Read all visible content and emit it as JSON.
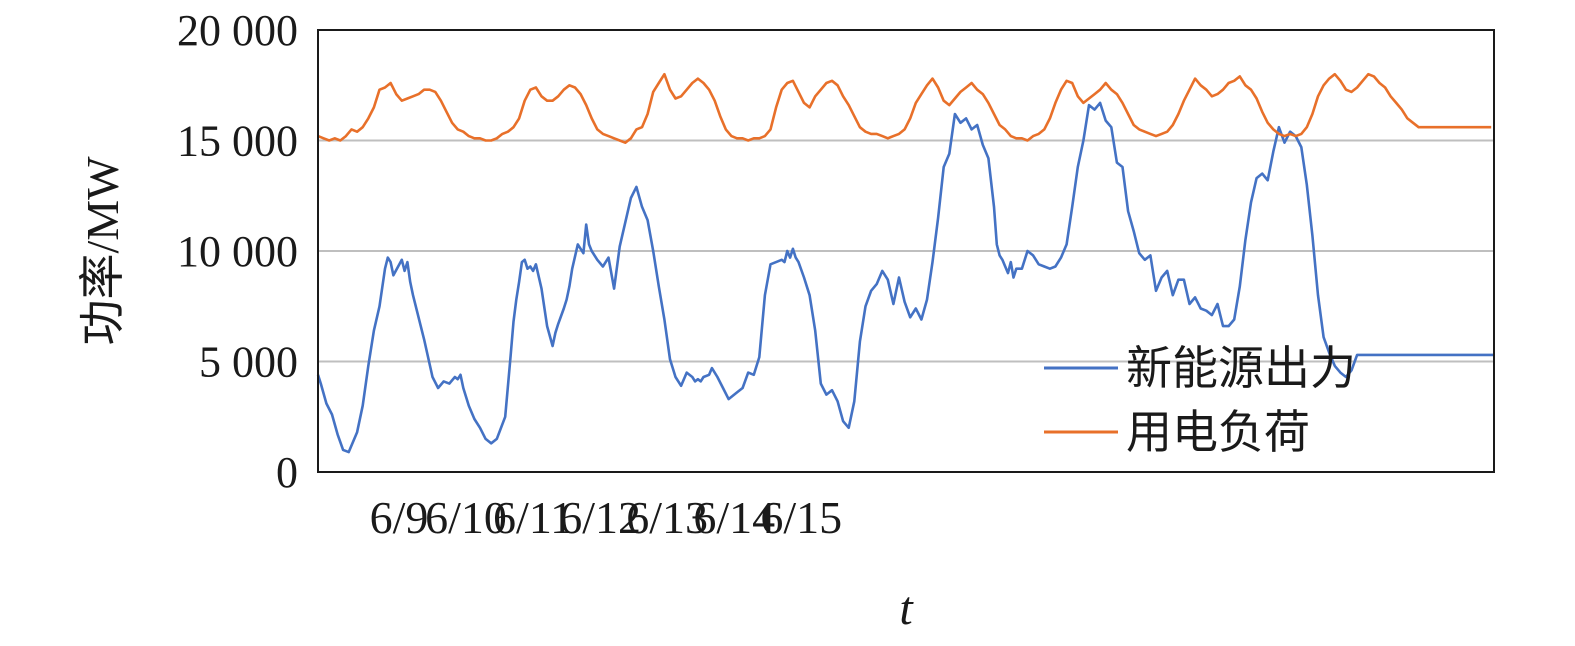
{
  "chart_data": {
    "type": "line",
    "title": "",
    "xlabel": "t",
    "ylabel": "功率/MW",
    "x_start": "6/8 07:00",
    "x_tick_labels": [
      "6/9",
      "6/10",
      "6/11",
      "6/12",
      "6/13",
      "6/14",
      "6/15"
    ],
    "y_tick_labels": [
      "0",
      "5 000",
      "10 000",
      "15 000",
      "20 000"
    ],
    "ylim": [
      0,
      20000
    ],
    "y_ticks": [
      0,
      5000,
      10000,
      15000,
      20000
    ],
    "grid": "horizontal",
    "legend_position": "bottom-right",
    "series": [
      {
        "name": "新能源出力",
        "color": "#4472C4",
        "time_hours": [
          0,
          1,
          3,
          5,
          7,
          9,
          11,
          14,
          16,
          18,
          20,
          22,
          24,
          25,
          26,
          27,
          30,
          31,
          32,
          33,
          34,
          38,
          41,
          43,
          45,
          47,
          49,
          50,
          51,
          52,
          54,
          56,
          58,
          60,
          62,
          64,
          67,
          69,
          70,
          71,
          72,
          73,
          74,
          75,
          76,
          77,
          78,
          80,
          82,
          84,
          85,
          86,
          88,
          89,
          90,
          91,
          93,
          95,
          96,
          97,
          98,
          100,
          102,
          104,
          106,
          108,
          110,
          112,
          114,
          116,
          118,
          120,
          122,
          124,
          126,
          128,
          130,
          132,
          134,
          135,
          136,
          137,
          138,
          140,
          141,
          143,
          145,
          147,
          150,
          152,
          154,
          156,
          158,
          160,
          162,
          164,
          166,
          167,
          168,
          169,
          170,
          171,
          172,
          174,
          176,
          178,
          180,
          182,
          184,
          186,
          188,
          190,
          192,
          194,
          196,
          198,
          200,
          202,
          204,
          206,
          208,
          210,
          212,
          214,
          216,
          218,
          220,
          222,
          224,
          226,
          228,
          230,
          232,
          234,
          236,
          238,
          240,
          242,
          243,
          244,
          245,
          246,
          247,
          248,
          249,
          250,
          252,
          254,
          256,
          258,
          260,
          262,
          264,
          266,
          268,
          270,
          272,
          274,
          276,
          278,
          280,
          282,
          284,
          286,
          288,
          290,
          292,
          294,
          296,
          298,
          300,
          302,
          304,
          306,
          308,
          310,
          312,
          314,
          316,
          318,
          320,
          322,
          324,
          326,
          328,
          330,
          332,
          334,
          336,
          338,
          340,
          342,
          344,
          346,
          348,
          350,
          352,
          354,
          356,
          358,
          360,
          362,
          364,
          366,
          368,
          370,
          372,
          374,
          376,
          378,
          380,
          382,
          384,
          386,
          388,
          390,
          392,
          394,
          396,
          398,
          400,
          402,
          404,
          406,
          408,
          410,
          412,
          414,
          416,
          418,
          420,
          421
        ],
        "values": [
          4400,
          4000,
          3100,
          2600,
          1700,
          1000,
          900,
          1800,
          3000,
          4800,
          6400,
          7500,
          9200,
          9700,
          9500,
          8900,
          9600,
          9100,
          9500,
          8600,
          8000,
          6000,
          4300,
          3800,
          4100,
          4000,
          4300,
          4200,
          4400,
          3800,
          3000,
          2400,
          2000,
          1500,
          1300,
          1500,
          2500,
          5300,
          6800,
          7800,
          8600,
          9500,
          9600,
          9200,
          9300,
          9100,
          9400,
          8300,
          6600,
          5700,
          6300,
          6700,
          7400,
          7800,
          8400,
          9200,
          10300,
          9900,
          11200,
          10300,
          10000,
          9600,
          9300,
          9700,
          8300,
          10200,
          11300,
          12400,
          12900,
          12000,
          11400,
          10000,
          8400,
          6900,
          5100,
          4300,
          3900,
          4500,
          4300,
          4100,
          4200,
          4100,
          4300,
          4400,
          4700,
          4300,
          3800,
          3300,
          3600,
          3800,
          4500,
          4400,
          5200,
          8000,
          9400,
          9500,
          9600,
          9500,
          10000,
          9700,
          10100,
          9700,
          9500,
          8800,
          8000,
          6400,
          4000,
          3500,
          3700,
          3200,
          2300,
          2000,
          3200,
          5900,
          7500,
          8200,
          8500,
          9100,
          8700,
          7600,
          8800,
          7700,
          7000,
          7400,
          6900,
          7800,
          9500,
          11500,
          13800,
          14400,
          16200,
          15800,
          16000,
          15500,
          15700,
          14800,
          14200,
          12000,
          10300,
          9800,
          9600,
          9300,
          9000,
          9500,
          8800,
          9200,
          9200,
          10000,
          9800,
          9400,
          9300,
          9200,
          9300,
          9700,
          10300,
          12000,
          13800,
          15000,
          16600,
          16400,
          16700,
          15900,
          15600,
          14000,
          13800,
          11800,
          10900,
          9900,
          9600,
          9800,
          8200,
          8800,
          9100,
          8000,
          8700,
          8700,
          7600,
          7900,
          7400,
          7300,
          7100,
          7600,
          6600,
          6600,
          6900,
          8400,
          10500,
          12200,
          13300,
          13500,
          13200,
          14500,
          15600,
          14900,
          15400,
          15200,
          14700,
          13000,
          10700,
          8000,
          6100,
          5400,
          4800,
          4500,
          4300,
          4600,
          5300,
          5300,
          5300,
          5300,
          5300,
          5300,
          5300,
          5300,
          5300,
          5300,
          5300,
          5300,
          5300,
          5300,
          5300,
          5300,
          5300,
          5300,
          5300,
          5300,
          5300,
          5300,
          5300,
          5300,
          5300,
          5300,
          5300
        ]
      },
      {
        "name": "用电负荷",
        "color": "#E8702A",
        "time_hours": [
          0,
          2,
          4,
          6,
          8,
          10,
          12,
          14,
          16,
          18,
          20,
          22,
          24,
          26,
          28,
          30,
          32,
          34,
          36,
          38,
          40,
          42,
          44,
          46,
          48,
          50,
          52,
          54,
          56,
          58,
          60,
          62,
          64,
          66,
          68,
          70,
          72,
          74,
          76,
          78,
          80,
          82,
          84,
          86,
          88,
          90,
          92,
          94,
          96,
          98,
          100,
          102,
          104,
          106,
          108,
          110,
          112,
          114,
          116,
          118,
          120,
          122,
          124,
          126,
          128,
          130,
          132,
          134,
          136,
          138,
          140,
          142,
          144,
          146,
          148,
          150,
          152,
          154,
          156,
          158,
          160,
          162,
          164,
          166,
          168,
          170,
          172,
          174,
          176,
          178,
          180,
          182,
          184,
          186,
          188,
          190,
          192,
          194,
          196,
          198,
          200,
          202,
          204,
          206,
          208,
          210,
          212,
          214,
          216,
          218,
          220,
          222,
          224,
          226,
          228,
          230,
          232,
          234,
          236,
          238,
          240,
          242,
          244,
          246,
          248,
          250,
          252,
          254,
          256,
          258,
          260,
          262,
          264,
          266,
          268,
          270,
          272,
          274,
          276,
          278,
          280,
          282,
          284,
          286,
          288,
          290,
          292,
          294,
          296,
          298,
          300,
          302,
          304,
          306,
          308,
          310,
          312,
          314,
          316,
          318,
          320,
          322,
          324,
          326,
          328,
          330,
          332,
          334,
          336,
          338,
          340,
          342,
          344,
          346,
          348,
          350,
          352,
          354,
          356,
          358,
          360,
          362,
          364,
          366,
          368,
          370,
          372,
          374,
          376,
          378,
          380,
          382,
          384,
          386,
          388,
          390,
          392,
          394,
          396,
          398,
          400,
          402,
          404,
          406,
          408,
          410,
          412,
          414,
          416,
          418,
          420
        ],
        "values": [
          15200,
          15100,
          15000,
          15100,
          15000,
          15200,
          15500,
          15400,
          15600,
          16000,
          16500,
          17300,
          17400,
          17600,
          17100,
          16800,
          16900,
          17000,
          17100,
          17300,
          17300,
          17200,
          16800,
          16300,
          15800,
          15500,
          15400,
          15200,
          15100,
          15100,
          15000,
          15000,
          15100,
          15300,
          15400,
          15600,
          16000,
          16800,
          17300,
          17400,
          17000,
          16800,
          16800,
          17000,
          17300,
          17500,
          17400,
          17100,
          16600,
          16000,
          15500,
          15300,
          15200,
          15100,
          15000,
          14900,
          15100,
          15500,
          15600,
          16200,
          17200,
          17600,
          18000,
          17300,
          16900,
          17000,
          17300,
          17600,
          17800,
          17600,
          17300,
          16800,
          16100,
          15500,
          15200,
          15100,
          15100,
          15000,
          15100,
          15100,
          15200,
          15500,
          16500,
          17300,
          17600,
          17700,
          17200,
          16700,
          16500,
          17000,
          17300,
          17600,
          17700,
          17500,
          17000,
          16600,
          16100,
          15600,
          15400,
          15300,
          15300,
          15200,
          15100,
          15200,
          15300,
          15500,
          16000,
          16700,
          17100,
          17500,
          17800,
          17400,
          16800,
          16600,
          16900,
          17200,
          17400,
          17600,
          17300,
          17100,
          16700,
          16200,
          15700,
          15500,
          15200,
          15100,
          15100,
          15000,
          15200,
          15300,
          15500,
          16000,
          16700,
          17300,
          17700,
          17600,
          17000,
          16700,
          16900,
          17100,
          17300,
          17600,
          17300,
          17100,
          16700,
          16200,
          15700,
          15500,
          15400,
          15300,
          15200,
          15300,
          15400,
          15700,
          16200,
          16800,
          17300,
          17800,
          17500,
          17300,
          17000,
          17100,
          17300,
          17600,
          17700,
          17900,
          17500,
          17300,
          16900,
          16300,
          15800,
          15500,
          15300,
          15200,
          15300,
          15200,
          15300,
          15600,
          16200,
          17000,
          17500,
          17800,
          18000,
          17700,
          17300,
          17200,
          17400,
          17700,
          18000,
          17900,
          17600,
          17400,
          17000,
          16700,
          16400,
          16000,
          15800,
          15600,
          15600,
          15600,
          15600,
          15600,
          15600,
          15600,
          15600,
          15600,
          15600,
          15600,
          15600,
          15600,
          15600
        ]
      }
    ]
  }
}
